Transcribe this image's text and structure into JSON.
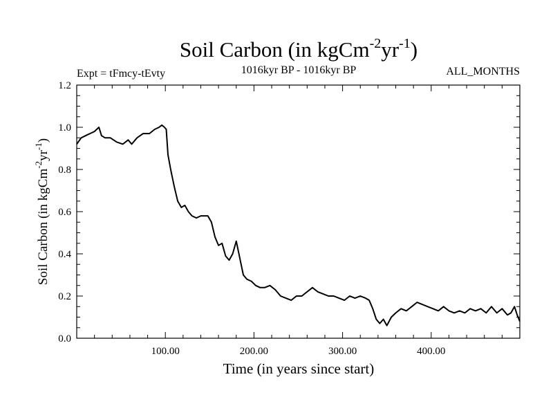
{
  "chart_data": {
    "type": "line",
    "title": {
      "text": "Soil Carbon (in kgCm",
      "sup1": "-2",
      "mid": "yr",
      "sup2": "-1",
      "end": ")"
    },
    "subtitle_left": "Expt = tFmcy-tEvty",
    "subtitle_center": "1016kyr BP - 1016kyr BP",
    "subtitle_right": "ALL_MONTHS",
    "xlabel": "Time (in years since start)",
    "ylabel": {
      "text": "Soil Carbon (in kgCm",
      "sup1": "-2",
      "mid": "yr",
      "sup2": "-1",
      "end": ")"
    },
    "xlim": [
      0,
      500
    ],
    "ylim": [
      0,
      1.2
    ],
    "x_ticks": [
      100,
      200,
      300,
      400
    ],
    "x_tick_labels": [
      "100.00",
      "200.00",
      "300.00",
      "400.00"
    ],
    "y_ticks": [
      0,
      0.2,
      0.4,
      0.6,
      0.8,
      1.0,
      1.2
    ],
    "y_tick_labels": [
      "0.0",
      "0.2",
      "0.4",
      "0.6",
      "0.8",
      "1.0",
      "1.2"
    ],
    "series": [
      {
        "name": "Soil Carbon",
        "color": "#000000",
        "x": [
          0,
          5,
          10,
          15,
          20,
          25,
          28,
          32,
          38,
          45,
          52,
          58,
          62,
          68,
          75,
          82,
          88,
          93,
          96,
          99,
          101,
          103,
          106,
          110,
          114,
          118,
          122,
          126,
          130,
          135,
          140,
          144,
          148,
          152,
          156,
          160,
          164,
          168,
          172,
          176,
          180,
          184,
          188,
          192,
          197,
          202,
          207,
          212,
          218,
          224,
          230,
          236,
          242,
          248,
          254,
          260,
          266,
          272,
          278,
          284,
          290,
          296,
          302,
          308,
          314,
          320,
          326,
          330,
          334,
          338,
          342,
          346,
          350,
          355,
          360,
          366,
          372,
          378,
          384,
          390,
          396,
          402,
          408,
          414,
          420,
          426,
          432,
          438,
          444,
          450,
          456,
          462,
          468,
          474,
          480,
          486,
          490,
          494,
          497,
          500
        ],
        "values": [
          0.92,
          0.95,
          0.96,
          0.97,
          0.98,
          1.0,
          0.96,
          0.95,
          0.95,
          0.93,
          0.92,
          0.94,
          0.92,
          0.95,
          0.97,
          0.97,
          0.99,
          1.0,
          1.01,
          1.0,
          0.99,
          0.87,
          0.8,
          0.72,
          0.65,
          0.62,
          0.63,
          0.6,
          0.58,
          0.57,
          0.58,
          0.58,
          0.58,
          0.55,
          0.48,
          0.44,
          0.45,
          0.39,
          0.37,
          0.4,
          0.46,
          0.38,
          0.3,
          0.28,
          0.27,
          0.25,
          0.24,
          0.24,
          0.25,
          0.23,
          0.2,
          0.19,
          0.18,
          0.2,
          0.2,
          0.22,
          0.24,
          0.22,
          0.21,
          0.2,
          0.2,
          0.19,
          0.18,
          0.2,
          0.19,
          0.2,
          0.19,
          0.18,
          0.14,
          0.09,
          0.07,
          0.09,
          0.06,
          0.1,
          0.12,
          0.14,
          0.13,
          0.15,
          0.17,
          0.16,
          0.15,
          0.14,
          0.13,
          0.15,
          0.13,
          0.12,
          0.13,
          0.12,
          0.14,
          0.13,
          0.14,
          0.12,
          0.15,
          0.12,
          0.14,
          0.11,
          0.12,
          0.15,
          0.11,
          0.08
        ]
      }
    ]
  }
}
